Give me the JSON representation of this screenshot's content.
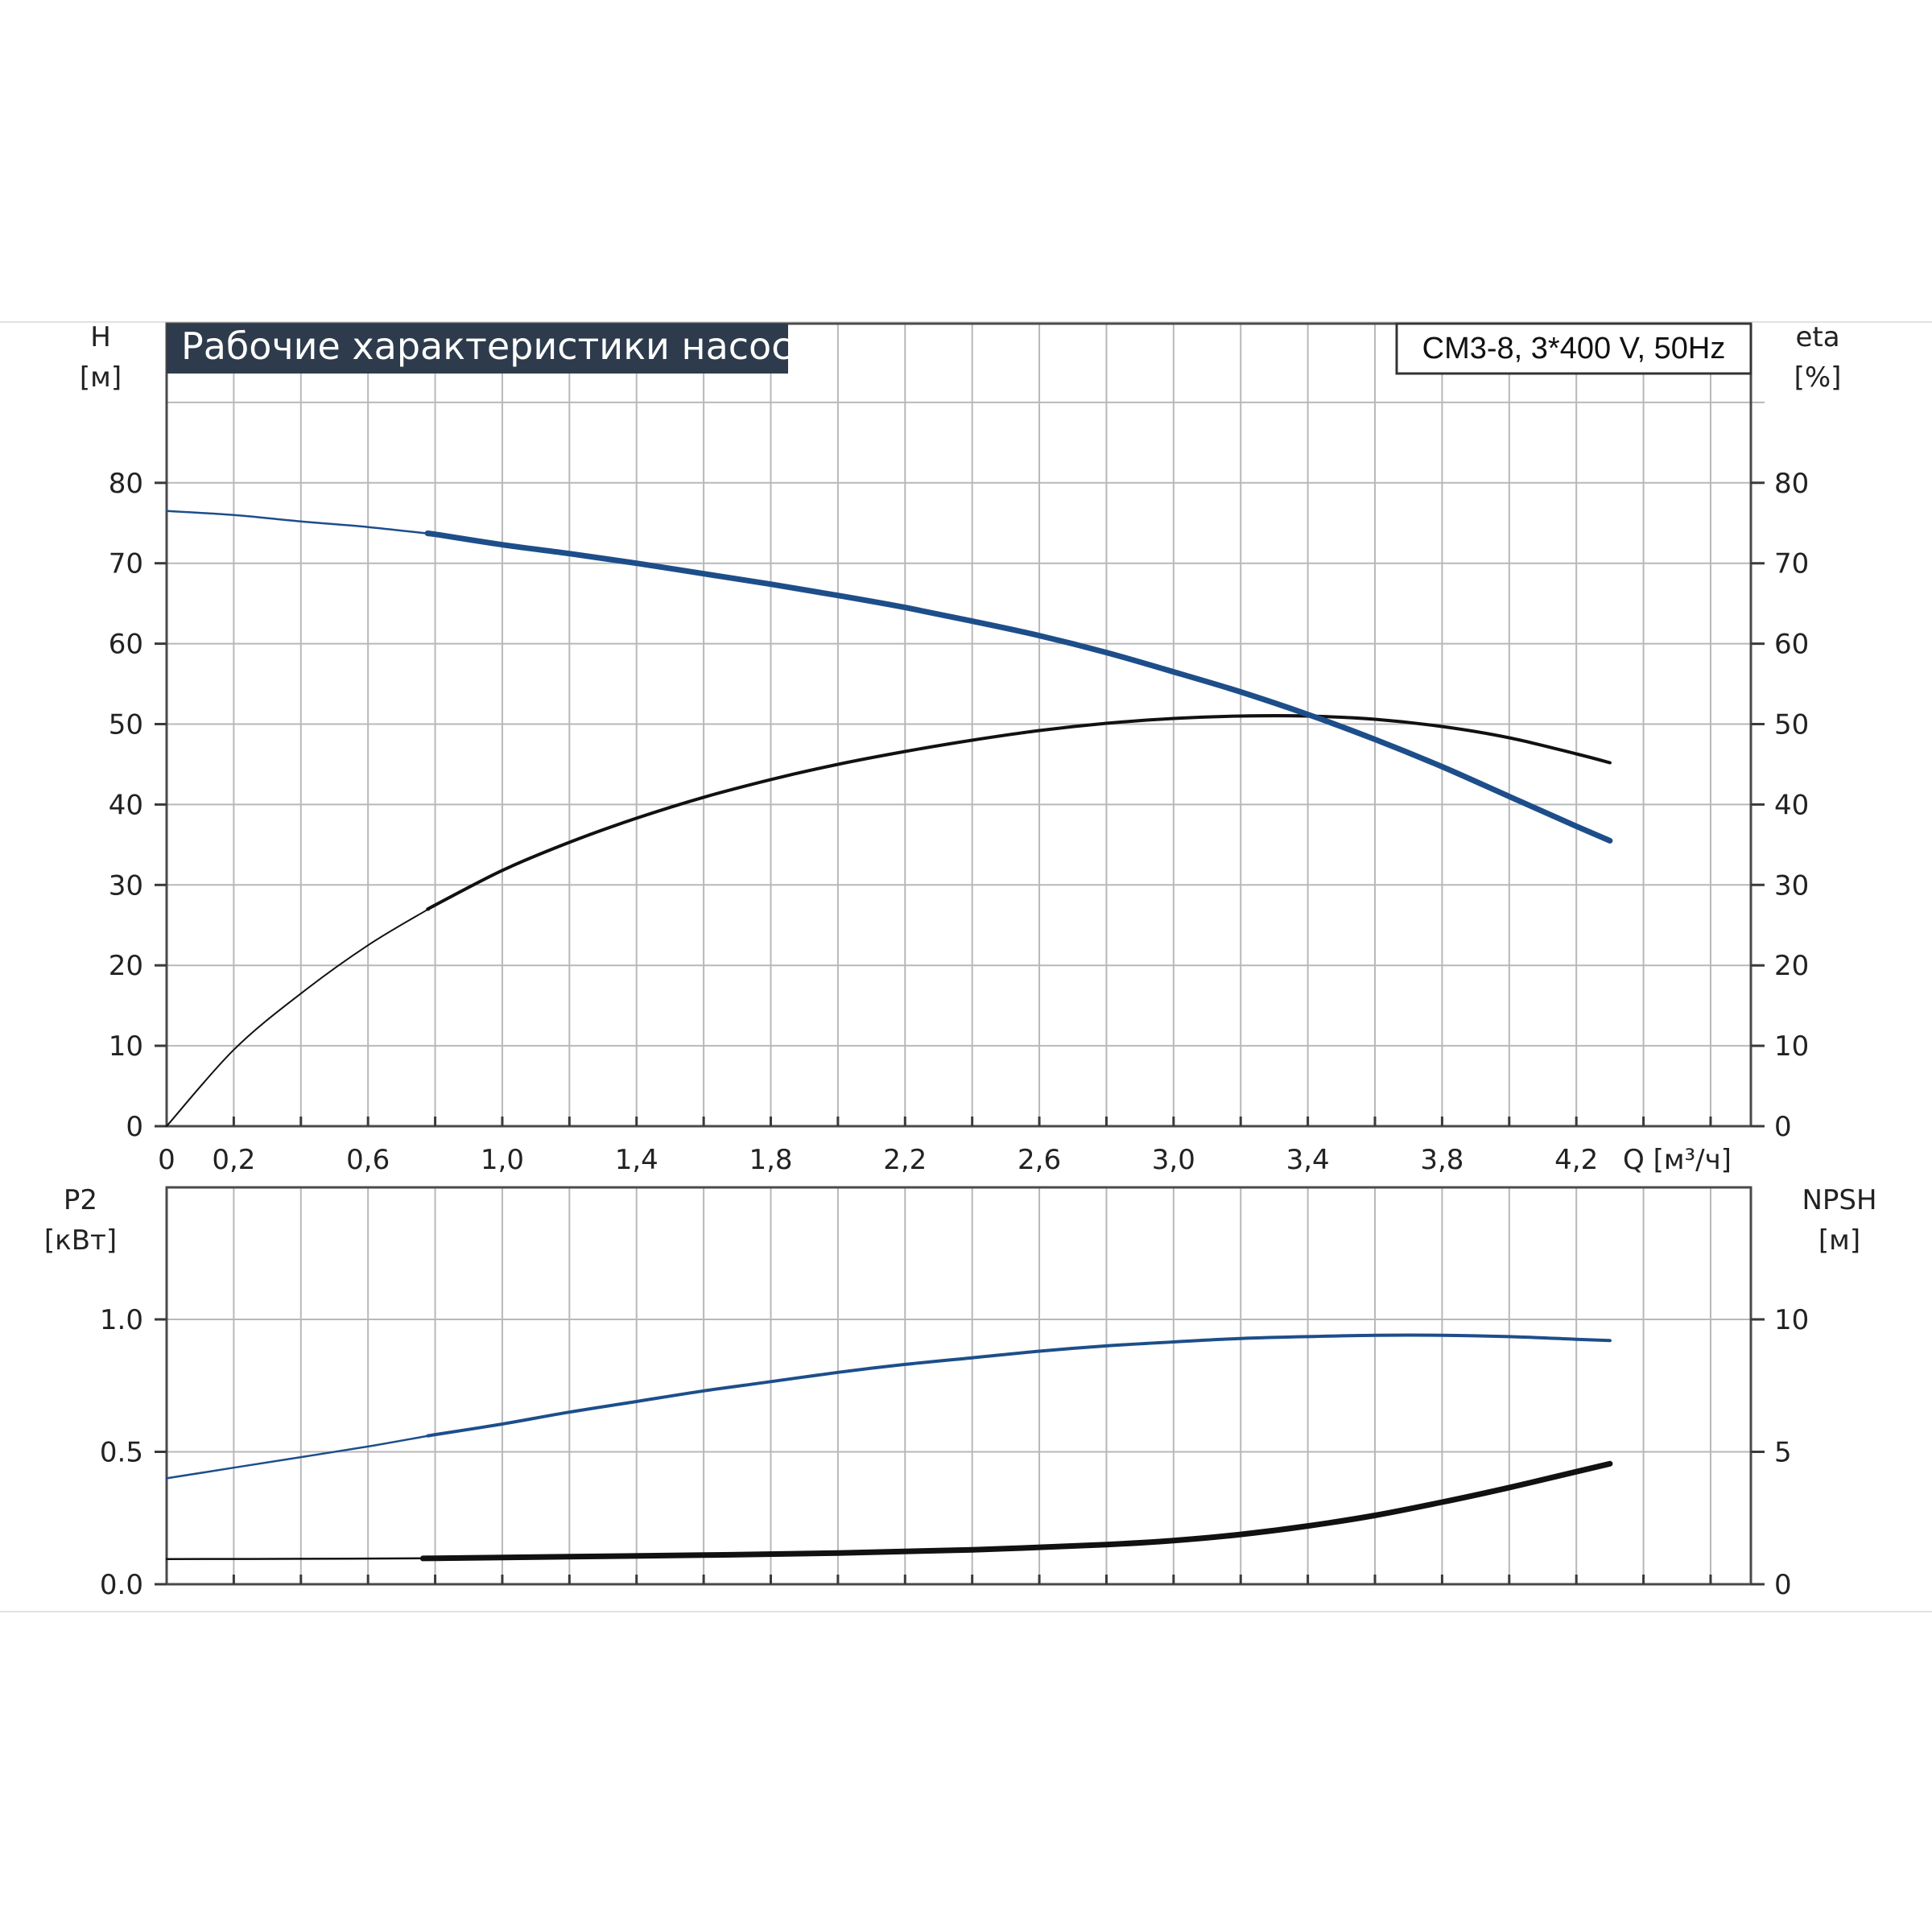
{
  "title": "Рабочие характеристики насоса",
  "model_label": "CM3-8, 3*400 V, 50Hz",
  "colors": {
    "blue_curve": "#1d4e8a",
    "black_curve": "#111111",
    "title_bg": "#2d3b4c",
    "grid": "#b8b8b8"
  },
  "chart_data": [
    {
      "type": "line",
      "y_left_label": [
        "H",
        "[м]"
      ],
      "y_right_label": [
        "eta",
        "[%]"
      ],
      "x_label": "Q [м³/ч]",
      "x_tick_labels": [
        "0",
        "0,2",
        "0,6",
        "1,0",
        "1,4",
        "1,8",
        "2,2",
        "2,6",
        "3,0",
        "3,4",
        "3,8",
        "4,2"
      ],
      "y_tick_labels": [
        "0",
        "10",
        "20",
        "30",
        "40",
        "50",
        "60",
        "70",
        "80"
      ],
      "xlim": [
        0,
        4.72
      ],
      "ylim": [
        0,
        100
      ],
      "grid": true,
      "series": [
        {
          "key": "head",
          "color": "blue_curve",
          "x": [
            0,
            0.2,
            0.4,
            0.6,
            0.8,
            1.0,
            1.2,
            1.4,
            1.6,
            1.8,
            2.0,
            2.2,
            2.4,
            2.6,
            2.8,
            3.0,
            3.2,
            3.4,
            3.6,
            3.8,
            4.0,
            4.2,
            4.3
          ],
          "y": [
            76.5,
            76.0,
            75.2,
            74.5,
            73.6,
            72.3,
            71.2,
            70.0,
            68.7,
            67.4,
            66.0,
            64.5,
            62.8,
            61.0,
            58.9,
            56.5,
            54.0,
            51.2,
            48.1,
            44.7,
            41.0,
            37.3,
            35.5
          ],
          "bold_from_x": 0.78
        },
        {
          "key": "efficiency",
          "color": "black_curve",
          "x": [
            0,
            0.2,
            0.4,
            0.6,
            0.8,
            1.0,
            1.2,
            1.4,
            1.6,
            1.8,
            2.0,
            2.2,
            2.4,
            2.6,
            2.8,
            3.0,
            3.2,
            3.4,
            3.6,
            3.8,
            4.0,
            4.2,
            4.3
          ],
          "y": [
            0,
            9.5,
            16.5,
            22.5,
            27.5,
            31.8,
            35.3,
            38.3,
            40.9,
            43.1,
            45.0,
            46.6,
            48.0,
            49.2,
            50.1,
            50.7,
            51.0,
            51.0,
            50.6,
            49.7,
            48.3,
            46.3,
            45.2
          ],
          "bold_from_x": 0.78
        }
      ]
    },
    {
      "type": "line",
      "y_left_label": [
        "P2",
        "[кВт]"
      ],
      "y_right_label": [
        "NPSH",
        "[м]"
      ],
      "y_tick_labels": [
        "0.0",
        "0.5",
        "1.0"
      ],
      "y_right_tick_labels": [
        "0",
        "5",
        "10"
      ],
      "xlim": [
        0,
        4.72
      ],
      "ylim": [
        0,
        1.5
      ],
      "y_right_lim": [
        0,
        15
      ],
      "grid": true,
      "series": [
        {
          "key": "power",
          "axis": "left",
          "color": "blue_curve",
          "x": [
            0,
            0.2,
            0.4,
            0.6,
            0.8,
            1.0,
            1.2,
            1.4,
            1.6,
            1.8,
            2.0,
            2.2,
            2.4,
            2.6,
            2.8,
            3.0,
            3.2,
            3.4,
            3.6,
            3.8,
            4.0,
            4.2,
            4.3
          ],
          "y": [
            0.4,
            0.44,
            0.48,
            0.52,
            0.565,
            0.605,
            0.65,
            0.69,
            0.73,
            0.765,
            0.8,
            0.83,
            0.855,
            0.88,
            0.9,
            0.915,
            0.928,
            0.935,
            0.94,
            0.94,
            0.935,
            0.925,
            0.92
          ],
          "bold_from_x": 0.78
        },
        {
          "key": "npsh",
          "axis": "right",
          "color": "black_curve",
          "x": [
            0,
            0.4,
            0.8,
            1.2,
            1.6,
            2.0,
            2.4,
            2.8,
            3.0,
            3.2,
            3.4,
            3.6,
            3.8,
            4.0,
            4.2,
            4.3
          ],
          "y": [
            0.95,
            0.96,
            0.98,
            1.04,
            1.1,
            1.18,
            1.3,
            1.5,
            1.65,
            1.88,
            2.2,
            2.6,
            3.1,
            3.65,
            4.25,
            4.55
          ],
          "bold_from_x": 0.78
        }
      ]
    }
  ]
}
